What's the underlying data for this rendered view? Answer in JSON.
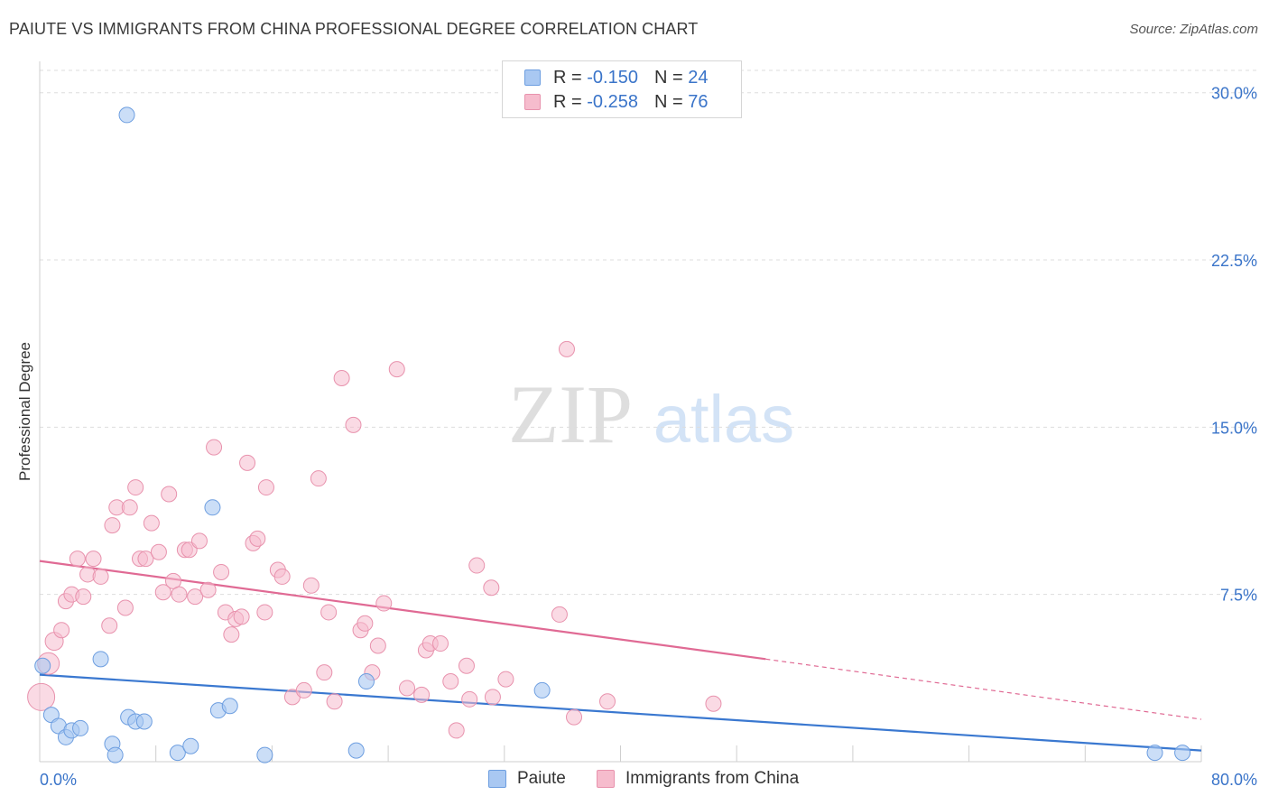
{
  "title": "PAIUTE VS IMMIGRANTS FROM CHINA PROFESSIONAL DEGREE CORRELATION CHART",
  "source": "Source: ZipAtlas.com",
  "watermark": {
    "zip": "ZIP",
    "atlas": "atlas"
  },
  "legend": {
    "r_label": "R =",
    "n_label": "N =",
    "paiute": {
      "r": "-0.150",
      "n": "24"
    },
    "china": {
      "r": "-0.258",
      "n": "76"
    }
  },
  "colors": {
    "paiute_fill": "#a9c8f2",
    "paiute_stroke": "#6d9ee0",
    "paiute_line": "#3a78d0",
    "china_fill": "#f6bccd",
    "china_stroke": "#e892ad",
    "china_line": "#e06a94",
    "axis_text": "#3a74c9",
    "grid": "#dddddd"
  },
  "chart_data": {
    "type": "scatter",
    "title": "PAIUTE VS IMMIGRANTS FROM CHINA PROFESSIONAL DEGREE CORRELATION CHART",
    "xlabel": "",
    "ylabel": "Professional Degree",
    "xlim": [
      0,
      80
    ],
    "ylim": [
      0,
      31
    ],
    "x_tick_labels": [
      "0.0%",
      "80.0%"
    ],
    "y_ticks": [
      7.5,
      15.0,
      22.5,
      30.0
    ],
    "y_tick_labels": [
      "7.5%",
      "15.0%",
      "22.5%",
      "30.0%"
    ],
    "grid": true,
    "series": [
      {
        "name": "Paiute",
        "points": [
          [
            0.2,
            4.3
          ],
          [
            0.8,
            2.1
          ],
          [
            1.3,
            1.6
          ],
          [
            1.8,
            1.1
          ],
          [
            2.2,
            1.4
          ],
          [
            2.8,
            1.5
          ],
          [
            4.2,
            4.6
          ],
          [
            5.0,
            0.8
          ],
          [
            5.2,
            0.3
          ],
          [
            6.0,
            29.0
          ],
          [
            6.1,
            2.0
          ],
          [
            6.6,
            1.8
          ],
          [
            7.2,
            1.8
          ],
          [
            9.5,
            0.4
          ],
          [
            10.4,
            0.7
          ],
          [
            11.9,
            11.4
          ],
          [
            12.3,
            2.3
          ],
          [
            13.1,
            2.5
          ],
          [
            15.5,
            0.3
          ],
          [
            21.8,
            0.5
          ],
          [
            22.5,
            3.6
          ],
          [
            34.6,
            3.2
          ],
          [
            76.8,
            0.4
          ],
          [
            78.7,
            0.4
          ]
        ],
        "trend": {
          "x": [
            0,
            80
          ],
          "y": [
            3.9,
            0.5
          ]
        }
      },
      {
        "name": "Immigrants from China",
        "points": [
          [
            0.1,
            2.9
          ],
          [
            0.6,
            4.4
          ],
          [
            1.0,
            5.4
          ],
          [
            1.5,
            5.9
          ],
          [
            1.8,
            7.2
          ],
          [
            2.2,
            7.5
          ],
          [
            2.6,
            9.1
          ],
          [
            3.0,
            7.4
          ],
          [
            3.3,
            8.4
          ],
          [
            3.7,
            9.1
          ],
          [
            4.2,
            8.3
          ],
          [
            4.8,
            6.1
          ],
          [
            5.0,
            10.6
          ],
          [
            5.3,
            11.4
          ],
          [
            5.9,
            6.9
          ],
          [
            6.2,
            11.4
          ],
          [
            6.6,
            12.3
          ],
          [
            6.9,
            9.1
          ],
          [
            7.3,
            9.1
          ],
          [
            7.7,
            10.7
          ],
          [
            8.2,
            9.4
          ],
          [
            8.5,
            7.6
          ],
          [
            8.9,
            12.0
          ],
          [
            9.2,
            8.1
          ],
          [
            9.6,
            7.5
          ],
          [
            10.0,
            9.5
          ],
          [
            10.3,
            9.5
          ],
          [
            10.7,
            7.4
          ],
          [
            11.0,
            9.9
          ],
          [
            11.6,
            7.7
          ],
          [
            12.0,
            14.1
          ],
          [
            12.5,
            8.5
          ],
          [
            12.8,
            6.7
          ],
          [
            13.2,
            5.7
          ],
          [
            13.5,
            6.4
          ],
          [
            13.9,
            6.5
          ],
          [
            14.3,
            13.4
          ],
          [
            14.7,
            9.8
          ],
          [
            15.0,
            10.0
          ],
          [
            15.5,
            6.7
          ],
          [
            15.6,
            12.3
          ],
          [
            16.4,
            8.6
          ],
          [
            16.7,
            8.3
          ],
          [
            17.4,
            2.9
          ],
          [
            18.2,
            3.2
          ],
          [
            18.7,
            7.9
          ],
          [
            19.2,
            12.7
          ],
          [
            19.6,
            4.0
          ],
          [
            19.9,
            6.7
          ],
          [
            20.3,
            2.7
          ],
          [
            20.8,
            17.2
          ],
          [
            21.6,
            15.1
          ],
          [
            22.1,
            5.9
          ],
          [
            22.4,
            6.2
          ],
          [
            22.9,
            4.0
          ],
          [
            23.3,
            5.2
          ],
          [
            23.7,
            7.1
          ],
          [
            24.6,
            17.6
          ],
          [
            25.3,
            3.3
          ],
          [
            26.3,
            3.0
          ],
          [
            26.6,
            5.0
          ],
          [
            26.9,
            5.3
          ],
          [
            27.6,
            5.3
          ],
          [
            28.3,
            3.6
          ],
          [
            28.7,
            1.4
          ],
          [
            29.4,
            4.3
          ],
          [
            29.6,
            2.8
          ],
          [
            30.1,
            8.8
          ],
          [
            31.1,
            7.8
          ],
          [
            31.2,
            2.9
          ],
          [
            32.1,
            3.7
          ],
          [
            35.8,
            6.6
          ],
          [
            36.3,
            18.5
          ],
          [
            36.8,
            2.0
          ],
          [
            39.1,
            2.7
          ],
          [
            46.4,
            2.6
          ]
        ],
        "trend": {
          "x": [
            0,
            50
          ],
          "y": [
            9.0,
            4.6
          ]
        },
        "trend_extension": {
          "x": [
            50,
            80
          ],
          "y": [
            4.6,
            1.9
          ]
        }
      }
    ]
  }
}
